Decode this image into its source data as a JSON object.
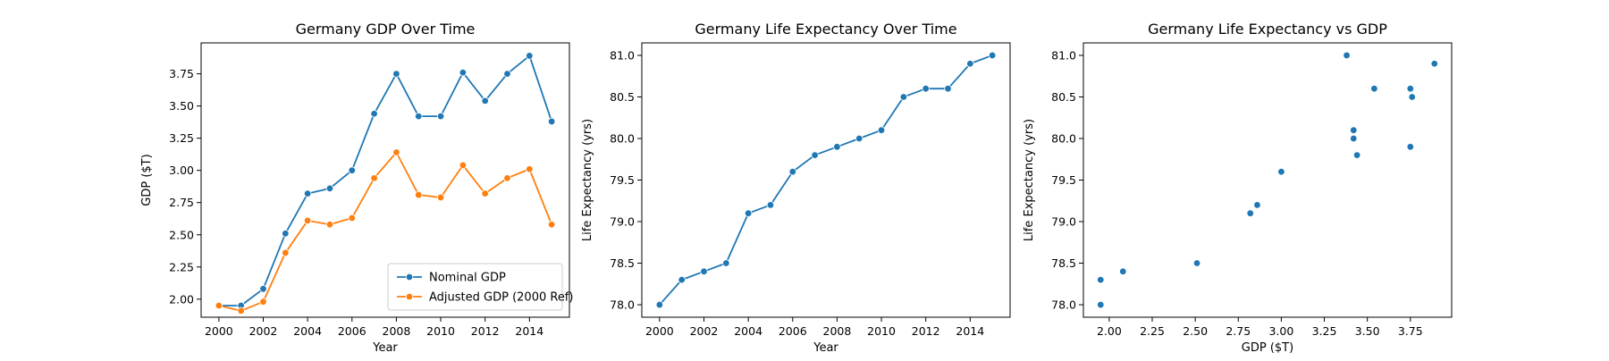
{
  "chart_data": [
    {
      "type": "line",
      "title": "Germany GDP Over Time",
      "xlabel": "Year",
      "ylabel": "GDP ($T)",
      "xlim": [
        1999.2,
        2015.8
      ],
      "ylim": [
        1.86,
        3.99
      ],
      "xticks": [
        2000,
        2002,
        2004,
        2006,
        2008,
        2010,
        2012,
        2014
      ],
      "yticks": [
        2.0,
        2.25,
        2.5,
        2.75,
        3.0,
        3.25,
        3.5,
        3.75
      ],
      "ytick_labels": [
        "2.00",
        "2.25",
        "2.50",
        "2.75",
        "3.00",
        "3.25",
        "3.50",
        "3.75"
      ],
      "legend_position": "lower-right",
      "x": [
        2000,
        2001,
        2002,
        2003,
        2004,
        2005,
        2006,
        2007,
        2008,
        2009,
        2010,
        2011,
        2012,
        2013,
        2014,
        2015
      ],
      "series": [
        {
          "name": "Nominal GDP",
          "color": "#1f77b4",
          "values": [
            1.95,
            1.95,
            2.08,
            2.51,
            2.82,
            2.86,
            3.0,
            3.44,
            3.75,
            3.42,
            3.42,
            3.76,
            3.54,
            3.75,
            3.89,
            3.38
          ]
        },
        {
          "name": "Adjusted GDP (2000 Ref)",
          "color": "#ff7f0e",
          "values": [
            1.95,
            1.91,
            1.98,
            2.36,
            2.61,
            2.58,
            2.63,
            2.94,
            3.14,
            2.81,
            2.79,
            3.04,
            2.82,
            2.94,
            3.01,
            2.58
          ]
        }
      ]
    },
    {
      "type": "line",
      "title": "Germany Life Expectancy Over Time",
      "xlabel": "Year",
      "ylabel": "Life Expectancy (yrs)",
      "xlim": [
        1999.2,
        2015.8
      ],
      "ylim": [
        77.85,
        81.15
      ],
      "xticks": [
        2000,
        2002,
        2004,
        2006,
        2008,
        2010,
        2012,
        2014
      ],
      "yticks": [
        78.0,
        78.5,
        79.0,
        79.5,
        80.0,
        80.5,
        81.0
      ],
      "ytick_labels": [
        "78.0",
        "78.5",
        "79.0",
        "79.5",
        "80.0",
        "80.5",
        "81.0"
      ],
      "x": [
        2000,
        2001,
        2002,
        2003,
        2004,
        2005,
        2006,
        2007,
        2008,
        2009,
        2010,
        2011,
        2012,
        2013,
        2014,
        2015
      ],
      "series": [
        {
          "color": "#1f77b4",
          "values": [
            78.0,
            78.3,
            78.4,
            78.5,
            79.1,
            79.2,
            79.6,
            79.8,
            79.9,
            80.0,
            80.1,
            80.5,
            80.6,
            80.6,
            80.9,
            81.0
          ]
        }
      ]
    },
    {
      "type": "scatter",
      "title": "Germany Life Expectancy vs GDP",
      "xlabel": "GDP ($T)",
      "ylabel": "Life Expectancy (yrs)",
      "xlim": [
        1.85,
        3.99
      ],
      "ylim": [
        77.85,
        81.15
      ],
      "xticks": [
        2.0,
        2.25,
        2.5,
        2.75,
        3.0,
        3.25,
        3.5,
        3.75
      ],
      "xtick_labels": [
        "2.00",
        "2.25",
        "2.50",
        "2.75",
        "3.00",
        "3.25",
        "3.50",
        "3.75"
      ],
      "yticks": [
        78.0,
        78.5,
        79.0,
        79.5,
        80.0,
        80.5,
        81.0
      ],
      "ytick_labels": [
        "78.0",
        "78.5",
        "79.0",
        "79.5",
        "80.0",
        "80.5",
        "81.0"
      ],
      "series": [
        {
          "color": "#1f77b4",
          "x": [
            1.95,
            1.95,
            2.08,
            2.51,
            2.82,
            2.86,
            3.0,
            3.44,
            3.75,
            3.42,
            3.42,
            3.76,
            3.54,
            3.75,
            3.89,
            3.38
          ],
          "y": [
            78.0,
            78.3,
            78.4,
            78.5,
            79.1,
            79.2,
            79.6,
            79.8,
            79.9,
            80.0,
            80.1,
            80.5,
            80.6,
            80.6,
            80.9,
            81.0
          ]
        }
      ]
    }
  ]
}
